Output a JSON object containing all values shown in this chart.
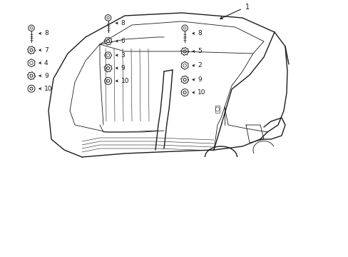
{
  "bg_color": "#ffffff",
  "line_color": "#1a1a1a",
  "fig_width": 4.89,
  "fig_height": 3.6,
  "lw_main": 1.0,
  "lw_inner": 0.6,
  "lw_detail": 0.4,
  "col1_parts": [
    {
      "icon": "washer_flat",
      "label": "10",
      "ix": 0.09,
      "iy": 0.345
    },
    {
      "icon": "washer_wave",
      "label": "9",
      "ix": 0.09,
      "iy": 0.295
    },
    {
      "icon": "nut_hex",
      "label": "4",
      "ix": 0.09,
      "iy": 0.245
    },
    {
      "icon": "washer_wave",
      "label": "7",
      "ix": 0.09,
      "iy": 0.195
    },
    {
      "icon": "bolt_long",
      "label": "8",
      "ix": 0.09,
      "iy": 0.13
    }
  ],
  "col2_parts": [
    {
      "icon": "washer_flat",
      "label": "10",
      "ix": 0.31,
      "iy": 0.315
    },
    {
      "icon": "washer_wave",
      "label": "9",
      "ix": 0.31,
      "iy": 0.265
    },
    {
      "icon": "nut_hex2",
      "label": "3",
      "ix": 0.31,
      "iy": 0.215
    },
    {
      "icon": "washer_wave",
      "label": "6",
      "ix": 0.31,
      "iy": 0.16
    },
    {
      "icon": "bolt_long",
      "label": "8",
      "ix": 0.31,
      "iy": 0.09
    }
  ],
  "col3_parts": [
    {
      "icon": "washer_flat",
      "label": "10",
      "ix": 0.53,
      "iy": 0.36
    },
    {
      "icon": "washer_wave",
      "label": "9",
      "ix": 0.53,
      "iy": 0.31
    },
    {
      "icon": "nut_hex",
      "label": "2",
      "ix": 0.53,
      "iy": 0.255
    },
    {
      "icon": "washer_wave",
      "label": "5",
      "ix": 0.53,
      "iy": 0.2
    },
    {
      "icon": "bolt_long",
      "label": "8",
      "ix": 0.53,
      "iy": 0.13
    }
  ]
}
